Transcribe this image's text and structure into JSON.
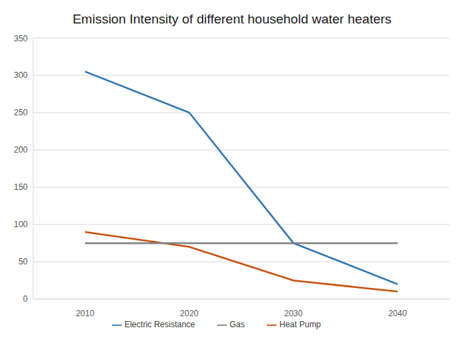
{
  "chart_data": {
    "type": "line",
    "title": "Emission Intensity of different household water heaters",
    "categories": [
      "2010",
      "2020",
      "2030",
      "2040"
    ],
    "series": [
      {
        "name": "Electric Resistance",
        "color": "#2e75b6",
        "values": [
          305,
          250,
          75,
          20
        ],
        "marker": "none",
        "line_style": "solid"
      },
      {
        "name": "Heat Pump",
        "color": "#c9510c",
        "values": [
          90,
          70,
          25,
          10
        ],
        "marker": "none",
        "line_style": "solid"
      },
      {
        "name": "Gas",
        "color": "#7f7f7f",
        "values": [
          75,
          75,
          75,
          75
        ],
        "marker": "none",
        "line_style": "solid"
      }
    ],
    "ylim": [
      0,
      350
    ],
    "yticks": [
      0,
      50,
      100,
      150,
      200,
      250,
      300,
      350
    ],
    "grid": true,
    "legend": "bottom"
  }
}
